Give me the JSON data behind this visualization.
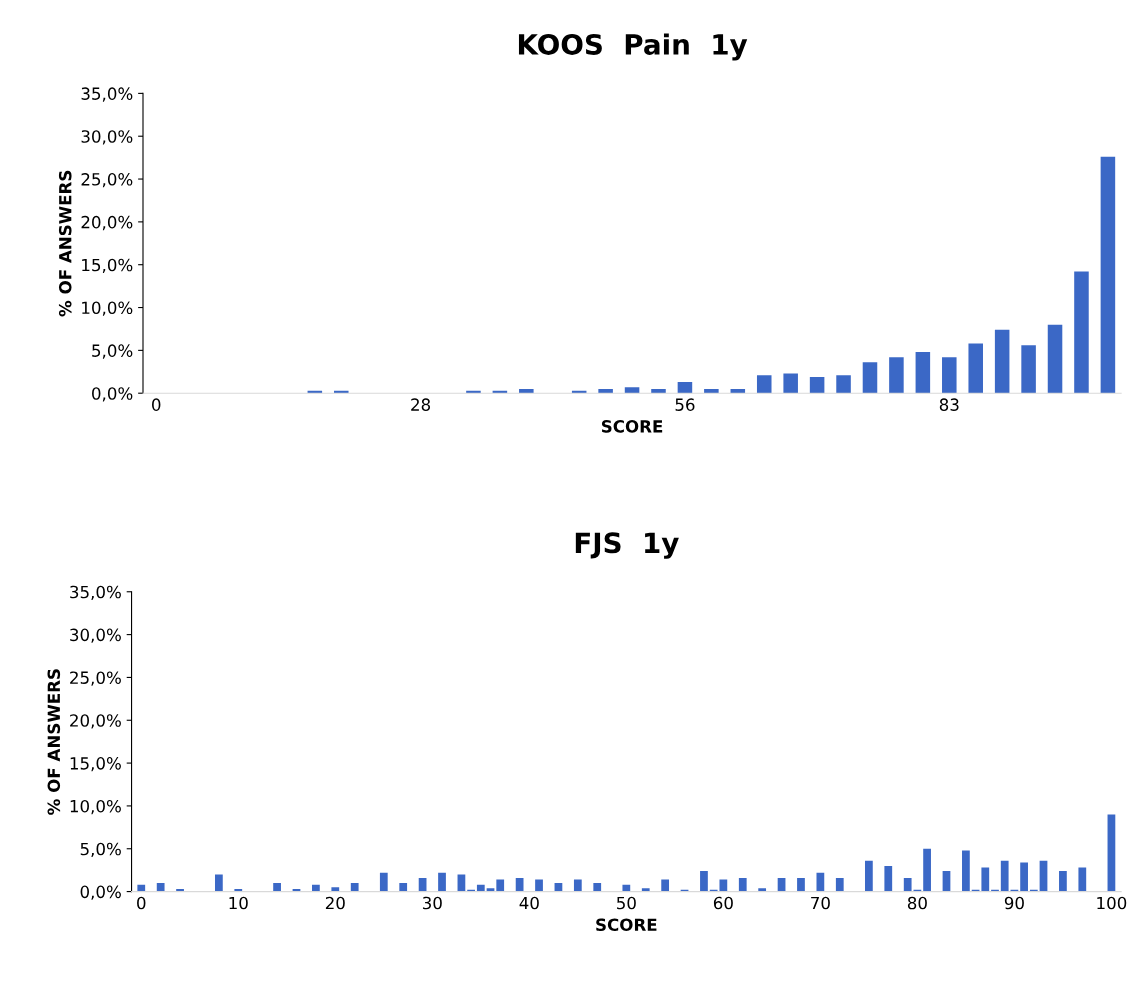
{
  "chart_data": [
    {
      "type": "bar",
      "title": "KOOS  Pain  1y",
      "xlabel": "SCORE",
      "ylabel": "% OF ANSWERS",
      "categories": [
        "0",
        null,
        null,
        null,
        null,
        null,
        null,
        null,
        null,
        null,
        "28",
        null,
        null,
        null,
        null,
        null,
        null,
        null,
        null,
        null,
        "56",
        null,
        null,
        null,
        null,
        null,
        null,
        null,
        null,
        null,
        "83",
        null,
        null,
        null,
        null,
        null,
        null
      ],
      "values": [
        0,
        0,
        0,
        0,
        0,
        0,
        0.3,
        0.3,
        0,
        0,
        0,
        0,
        0.3,
        0.3,
        0.5,
        0,
        0.3,
        0.5,
        0.7,
        0.5,
        1.3,
        0.5,
        0.5,
        2.1,
        2.3,
        1.9,
        2.1,
        3.6,
        4.2,
        4.8,
        4.2,
        5.8,
        7.4,
        5.6,
        8.0,
        14.2,
        27.6
      ],
      "color": "#3b68c6",
      "ylim": [
        0,
        35
      ],
      "yticks": [
        {
          "value": 0,
          "label": "0,0%"
        },
        {
          "value": 5,
          "label": "5,0%"
        },
        {
          "value": 10,
          "label": "10,0%"
        },
        {
          "value": 15,
          "label": "15,0%"
        },
        {
          "value": 20,
          "label": "20,0%"
        },
        {
          "value": 25,
          "label": "25,0%"
        },
        {
          "value": 30,
          "label": "30,0%"
        },
        {
          "value": 35,
          "label": "35,0%"
        }
      ],
      "grid": false
    },
    {
      "type": "bar",
      "title": "FJS  1y",
      "xlabel": "SCORE",
      "ylabel": "% OF ANSWERS",
      "x": [
        0,
        2,
        4,
        8,
        10,
        14,
        16,
        18,
        20,
        22,
        25,
        27,
        29,
        31,
        33,
        34,
        35,
        36,
        37,
        39,
        41,
        43,
        45,
        47,
        50,
        52,
        54,
        56,
        58,
        59,
        60,
        62,
        64,
        66,
        68,
        70,
        72,
        75,
        77,
        79,
        80,
        81,
        83,
        85,
        86,
        87,
        88,
        89,
        90,
        91,
        92,
        93,
        95,
        97,
        100
      ],
      "values": [
        0.8,
        1.0,
        0.3,
        2.0,
        0.3,
        1.0,
        0.3,
        0.8,
        0.5,
        1.0,
        2.2,
        1.0,
        1.6,
        2.2,
        2.0,
        0.2,
        0.8,
        0.4,
        1.4,
        1.6,
        1.4,
        1.0,
        1.4,
        1.0,
        0.8,
        0.4,
        1.4,
        0.2,
        2.4,
        0.2,
        1.4,
        1.6,
        0.4,
        1.6,
        1.6,
        2.2,
        1.6,
        3.6,
        3.0,
        1.6,
        0.2,
        5.0,
        2.4,
        4.8,
        0.2,
        2.8,
        0.2,
        3.6,
        0.2,
        3.4,
        0.2,
        3.6,
        2.4,
        2.8,
        9.0
      ],
      "color": "#3b68c6",
      "xlim": [
        -1,
        101
      ],
      "xticks": [
        0,
        10,
        20,
        30,
        40,
        50,
        60,
        70,
        80,
        90,
        100
      ],
      "ylim": [
        0,
        35
      ],
      "yticks": [
        {
          "value": 0,
          "label": "0,0%"
        },
        {
          "value": 5,
          "label": "5,0%"
        },
        {
          "value": 10,
          "label": "10,0%"
        },
        {
          "value": 15,
          "label": "15,0%"
        },
        {
          "value": 20,
          "label": "20,0%"
        },
        {
          "value": 25,
          "label": "25,0%"
        },
        {
          "value": 30,
          "label": "30,0%"
        },
        {
          "value": 35,
          "label": "35,0%"
        }
      ],
      "grid": false
    }
  ]
}
